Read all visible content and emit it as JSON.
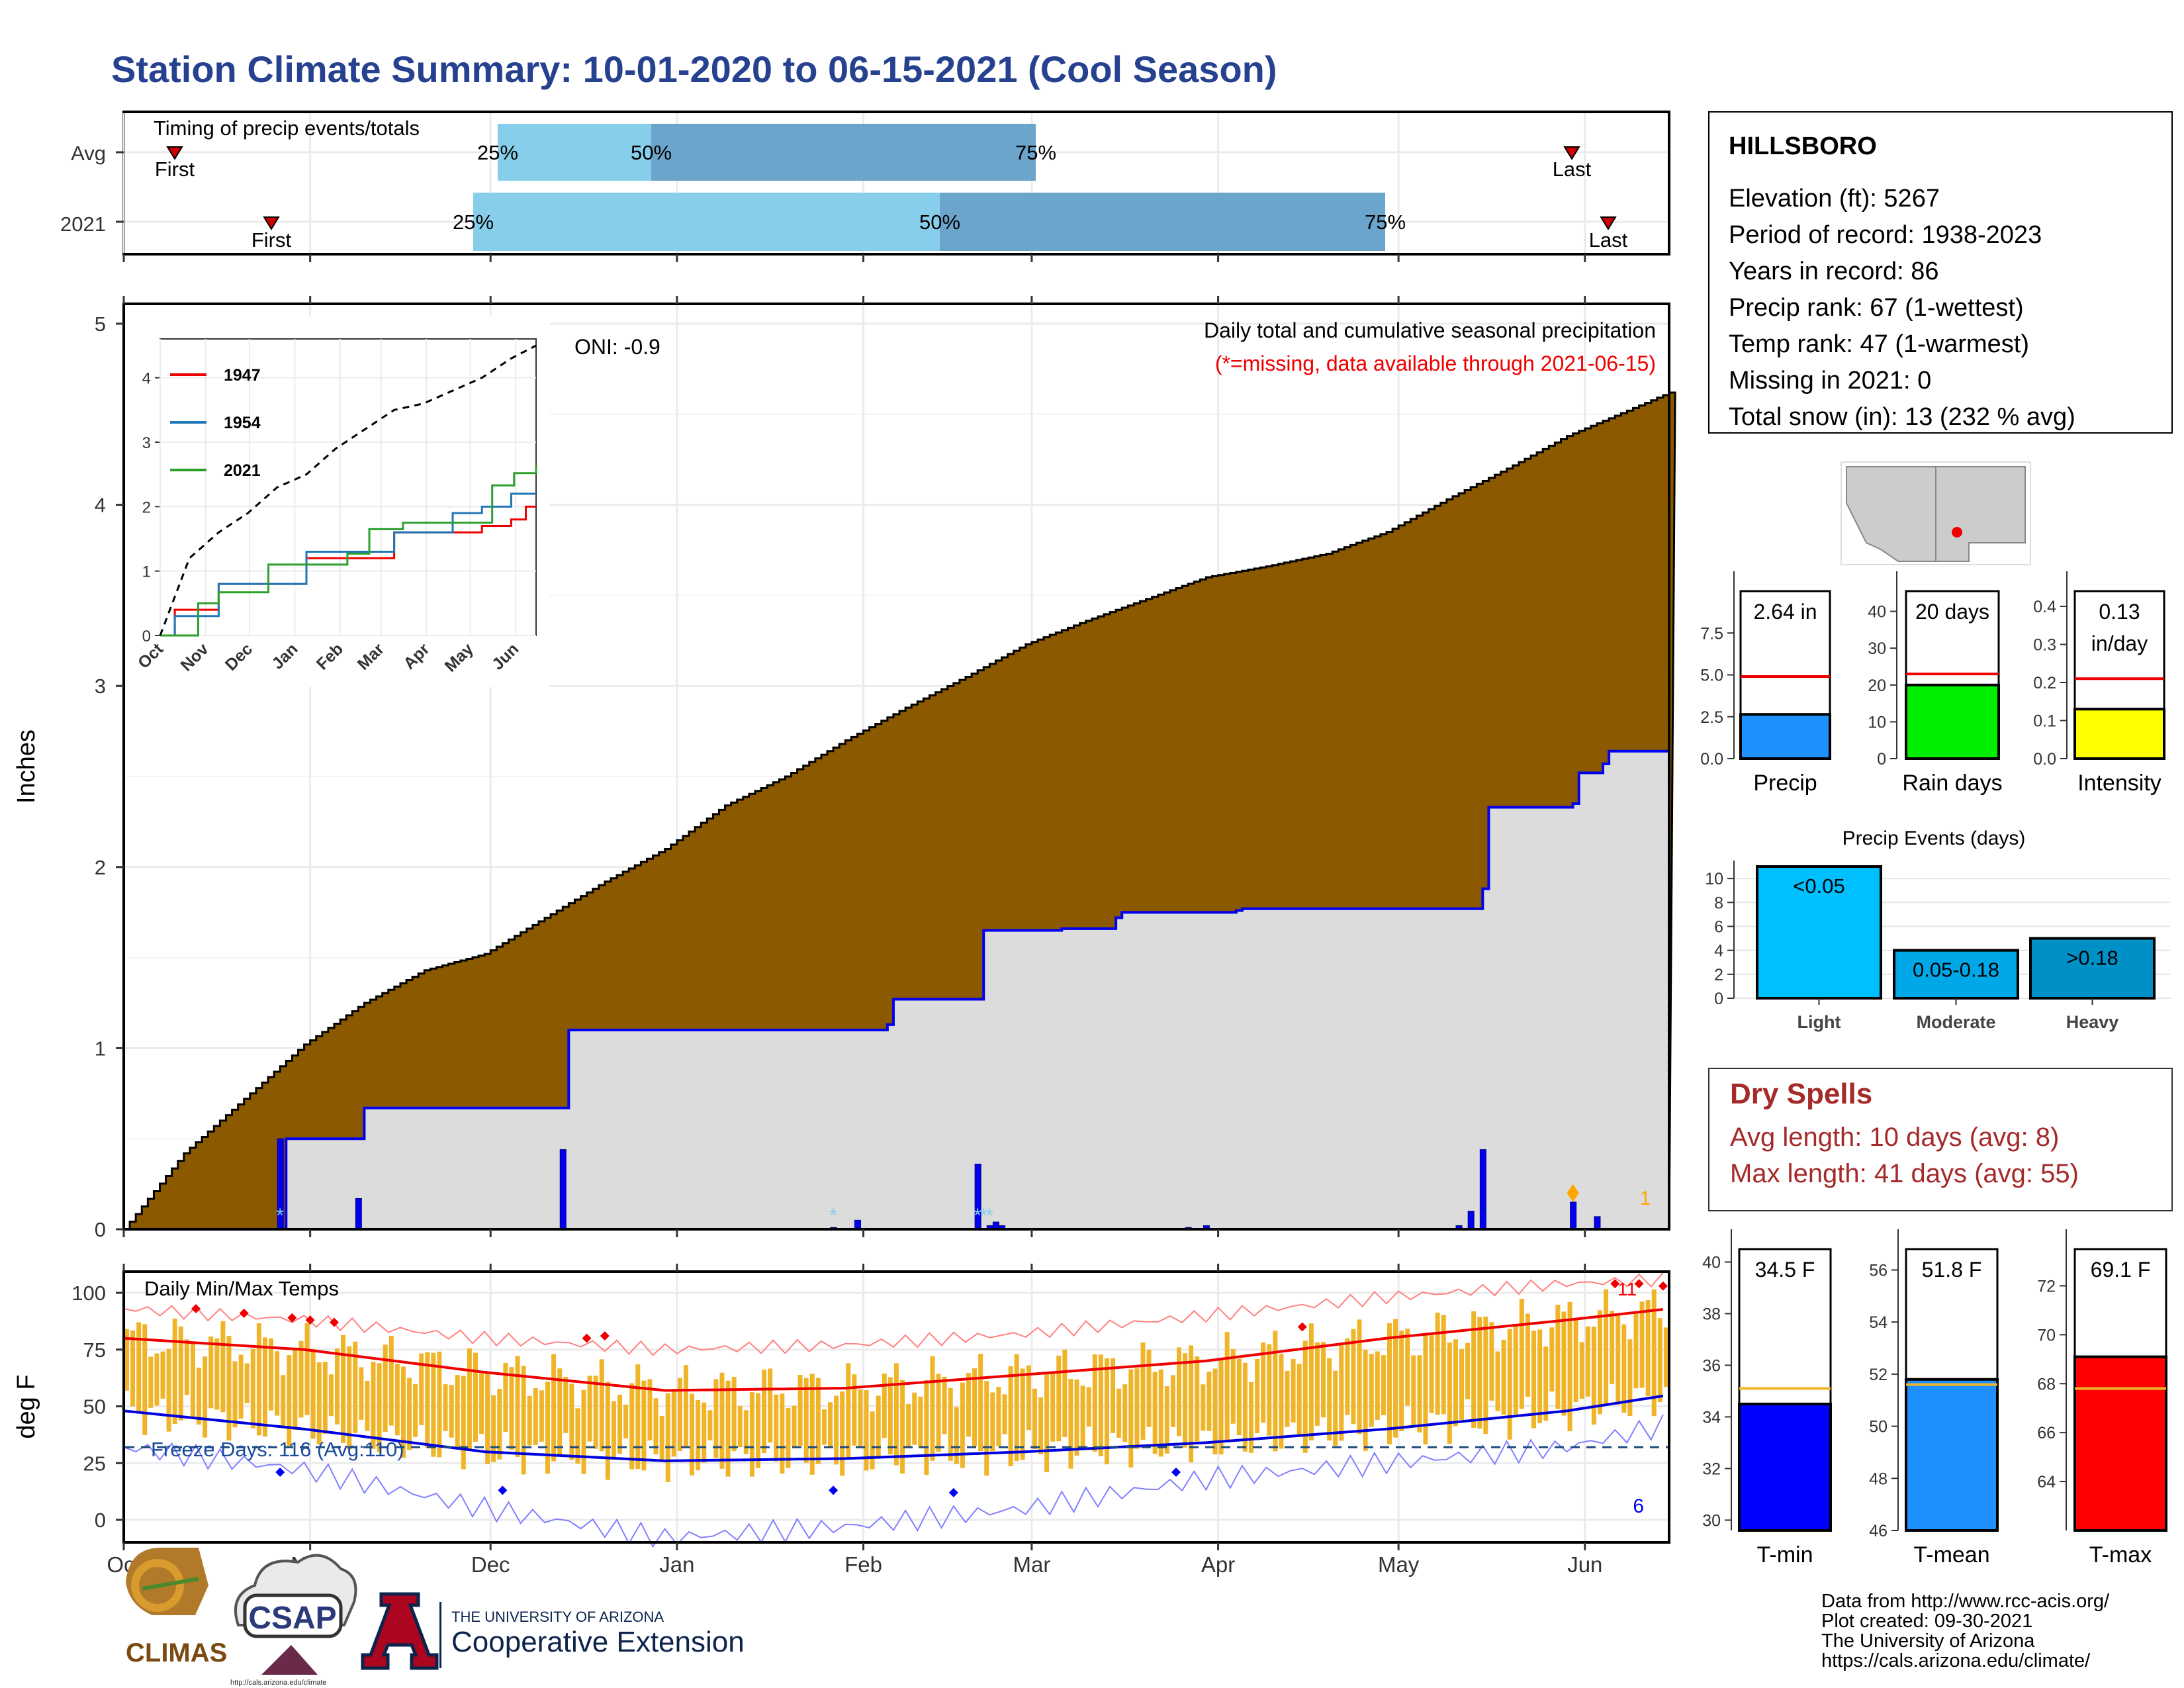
{
  "title": "Station Climate Summary: 10-01-2020 to 06-15-2021 (Cool Season)",
  "timing": {
    "label": "Timing of precip events/totals",
    "rows": [
      {
        "name": "Avg",
        "first_doy": 10,
        "last_doy": 244,
        "p25_doy": 60,
        "p50_doy": 134,
        "p75_doy": 247,
        "first": "First",
        "last": "Last",
        "p25": "25%",
        "p50": "50%",
        "p75": "75%"
      },
      {
        "name": "2021",
        "first_doy": 40,
        "last_doy": 255,
        "p25_doy": 59,
        "p50_doy": 133,
        "p75_doy": 250,
        "first": "First",
        "last": "Last",
        "p25": "25%",
        "p50": "50%",
        "p75": "75%"
      }
    ],
    "colors": {
      "light": "#87ceeb",
      "dark": "#6ba5cc",
      "marker": "#cc0000"
    }
  },
  "station": {
    "name": "HILLSBORO",
    "lines": [
      "Elevation (ft): 5267",
      "Period of record: 1938-2023",
      "Years in record: 86",
      "Precip rank: 67 (1-wettest)",
      "Temp rank: 47 (1-warmest)",
      "Missing in 2021: 0",
      "Total snow (in): 13 (232 % avg)"
    ]
  },
  "months": [
    "Oct",
    "Nov",
    "Dec",
    "Jan",
    "Feb",
    "Mar",
    "Apr",
    "May",
    "Jun"
  ],
  "inset_months": [
    "Oct",
    "Nov",
    "Dec",
    "Jan",
    "Feb",
    "Mar",
    "Apr",
    "May",
    "Jun"
  ],
  "precip_panel": {
    "ylabel": "Inches",
    "oni": "ONI: -0.9",
    "title": "Daily total and cumulative seasonal precipitation",
    "subtitle": "(*=missing, data available through 2021-06-15)",
    "snow_count": "1",
    "colors": {
      "avg": "#8b5a00",
      "obs_fill": "#dcdcdc",
      "obs_line": "#0000ee"
    }
  },
  "temp_panel": {
    "ylabel": "deg F",
    "label": "Daily Min/Max Temps",
    "freeze_text": "Freeze Days: 116 (Avg:110)",
    "hot_count": "11",
    "cold_count": "6"
  },
  "bars_precip": {
    "precip": {
      "label": "Precip",
      "value_text": "2.64 in",
      "value": 2.64,
      "avg": 4.9,
      "ticks": [
        "0.0",
        "2.5",
        "5.0",
        "7.5"
      ],
      "color": "#1e90ff"
    },
    "raindays": {
      "label": "Rain days",
      "value_text": "20 days",
      "value": 20,
      "avg": 23,
      "ticks": [
        "0",
        "10",
        "20",
        "30",
        "40"
      ],
      "color": "#00ee00"
    },
    "intensity": {
      "label": "Intensity",
      "value_text": "0.13",
      "value_text2": "in/day",
      "value": 0.13,
      "avg": 0.21,
      "ticks": [
        "0.0",
        "0.1",
        "0.2",
        "0.3",
        "0.4"
      ],
      "color": "#ffff00"
    }
  },
  "precip_events": {
    "title": "Precip Events (days)",
    "categories": [
      "Light",
      "Moderate",
      "Heavy"
    ],
    "labels": [
      "<0.05",
      "0.05-0.18",
      ">0.18"
    ],
    "values": [
      11,
      4,
      5
    ],
    "ticks": [
      "0",
      "2",
      "4",
      "6",
      "8",
      "10"
    ],
    "colors": [
      "#00bfff",
      "#00a8e8",
      "#0090c8"
    ]
  },
  "dry_spells": {
    "title": "Dry Spells",
    "avg": "Avg length: 10 days (avg: 8)",
    "max": "Max length: 41 days (avg: 55)"
  },
  "temp_bars": {
    "tmin": {
      "label": "T-min",
      "value_text": "34.5 F",
      "value": 34.5,
      "avg": 35.1,
      "ticks": [
        "30",
        "32",
        "34",
        "36",
        "38",
        "40"
      ],
      "color": "#0000ff"
    },
    "tmean": {
      "label": "T-mean",
      "value_text": "51.8 F",
      "value": 51.8,
      "avg": 51.6,
      "ticks": [
        "46",
        "48",
        "50",
        "52",
        "54",
        "56"
      ],
      "color": "#1e90ff"
    },
    "tmax": {
      "label": "T-max",
      "value_text": "69.1 F",
      "value": 69.1,
      "avg": 67.8,
      "ticks": [
        "64",
        "66",
        "68",
        "70",
        "72"
      ],
      "color": "#ff0000"
    }
  },
  "footer": {
    "lines": [
      "Data from http://www.rcc-acis.org/",
      "Plot created: 09-30-2021",
      "The University of Arizona",
      "https://cals.arizona.edu/climate/"
    ]
  },
  "logos": {
    "climas": "CLIMAS",
    "csap": "CSAP",
    "csap_url": "http://cals.arizona.edu/climate",
    "ua_top": "THE UNIVERSITY OF ARIZONA",
    "ua_bottom": "Cooperative Extension"
  },
  "chart_data": [
    {
      "type": "area",
      "title": "Daily total and cumulative seasonal precipitation",
      "ylabel": "Inches",
      "ylim": [
        0,
        5
      ],
      "x_unit": "day of season (day 0 = Oct 1)",
      "series": [
        {
          "name": "Avg cumulative",
          "x": [
            0,
            10,
            20,
            30,
            40,
            50,
            60,
            70,
            80,
            90,
            100,
            110,
            120,
            130,
            140,
            150,
            160,
            170,
            180,
            190,
            200,
            210,
            220,
            230,
            240,
            250,
            257
          ],
          "values": [
            0,
            0.42,
            0.72,
            1.02,
            1.25,
            1.43,
            1.52,
            1.72,
            1.92,
            2.1,
            2.34,
            2.5,
            2.7,
            2.88,
            3.05,
            3.23,
            3.36,
            3.48,
            3.6,
            3.66,
            3.73,
            3.85,
            4.03,
            4.2,
            4.38,
            4.52,
            4.62
          ]
        },
        {
          "name": "2021 cumulative",
          "x": [
            0,
            26,
            27,
            39,
            40,
            73,
            74,
            127,
            128,
            142,
            143,
            156,
            165,
            166,
            185,
            186,
            226,
            227,
            241,
            242,
            246,
            247,
            257
          ],
          "values": [
            0,
            0,
            0.5,
            0.5,
            0.67,
            0.67,
            1.1,
            1.13,
            1.27,
            1.27,
            1.65,
            1.66,
            1.72,
            1.75,
            1.76,
            1.77,
            1.88,
            2.33,
            2.35,
            2.52,
            2.57,
            2.64,
            2.64
          ]
        }
      ],
      "daily": {
        "x": [
          26,
          39,
          73,
          118,
          122,
          142,
          144,
          145,
          146,
          177,
          180,
          222,
          224,
          226,
          241,
          245
        ],
        "values": [
          0.5,
          0.17,
          0.44,
          0.01,
          0.05,
          0.36,
          0.02,
          0.04,
          0.02,
          0.01,
          0.02,
          0.02,
          0.1,
          0.44,
          0.15,
          0.07
        ]
      }
    },
    {
      "type": "line",
      "title": "inset cumulative precipitation",
      "ylim": [
        0,
        4.5
      ],
      "series": [
        {
          "name": "1947",
          "x": [
            0,
            10,
            40,
            100,
            160,
            220,
            240,
            250,
            257
          ],
          "values": [
            0,
            0.4,
            0.8,
            1.2,
            1.6,
            1.7,
            1.8,
            2.0,
            2.0
          ]
        },
        {
          "name": "1954",
          "x": [
            0,
            10,
            40,
            100,
            160,
            200,
            220,
            240,
            257
          ],
          "values": [
            0,
            0.3,
            0.8,
            1.3,
            1.6,
            1.9,
            2.0,
            2.2,
            2.2
          ]
        },
        {
          "name": "2021",
          "x": [
            0,
            26,
            40,
            74,
            128,
            143,
            166,
            227,
            242,
            257
          ],
          "values": [
            0,
            0.5,
            0.67,
            1.1,
            1.27,
            1.65,
            1.75,
            2.33,
            2.52,
            2.64
          ]
        },
        {
          "name": "wettest",
          "x": [
            0,
            20,
            40,
            60,
            80,
            100,
            120,
            140,
            160,
            180,
            200,
            220,
            240,
            257
          ],
          "values": [
            0,
            1.2,
            1.6,
            1.9,
            2.3,
            2.5,
            2.9,
            3.2,
            3.5,
            3.6,
            3.8,
            4.0,
            4.3,
            4.5
          ]
        }
      ]
    },
    {
      "type": "line",
      "title": "Daily Min/Max Temps",
      "ylabel": "deg F",
      "ylim": [
        -15,
        110
      ],
      "series": [
        {
          "name": "Avg max",
          "x": [
            0,
            30,
            60,
            90,
            120,
            150,
            180,
            210,
            240,
            257
          ],
          "values": [
            80,
            75,
            65,
            57,
            58,
            64,
            70,
            80,
            88,
            93
          ]
        },
        {
          "name": "Avg min",
          "x": [
            0,
            30,
            60,
            90,
            120,
            150,
            180,
            210,
            240,
            257
          ],
          "values": [
            48,
            40,
            30,
            26,
            27,
            30,
            34,
            40,
            48,
            55
          ]
        },
        {
          "name": "Record max",
          "x": [
            0,
            30,
            60,
            90,
            120,
            150,
            180,
            210,
            240,
            257
          ],
          "values": [
            93,
            88,
            80,
            75,
            77,
            82,
            90,
            98,
            104,
            106
          ]
        },
        {
          "name": "Record min",
          "x": [
            0,
            30,
            60,
            90,
            120,
            150,
            180,
            210,
            240,
            257
          ],
          "values": [
            32,
            22,
            5,
            -8,
            -3,
            5,
            18,
            25,
            32,
            42
          ]
        }
      ],
      "freeze_line": 32
    }
  ]
}
